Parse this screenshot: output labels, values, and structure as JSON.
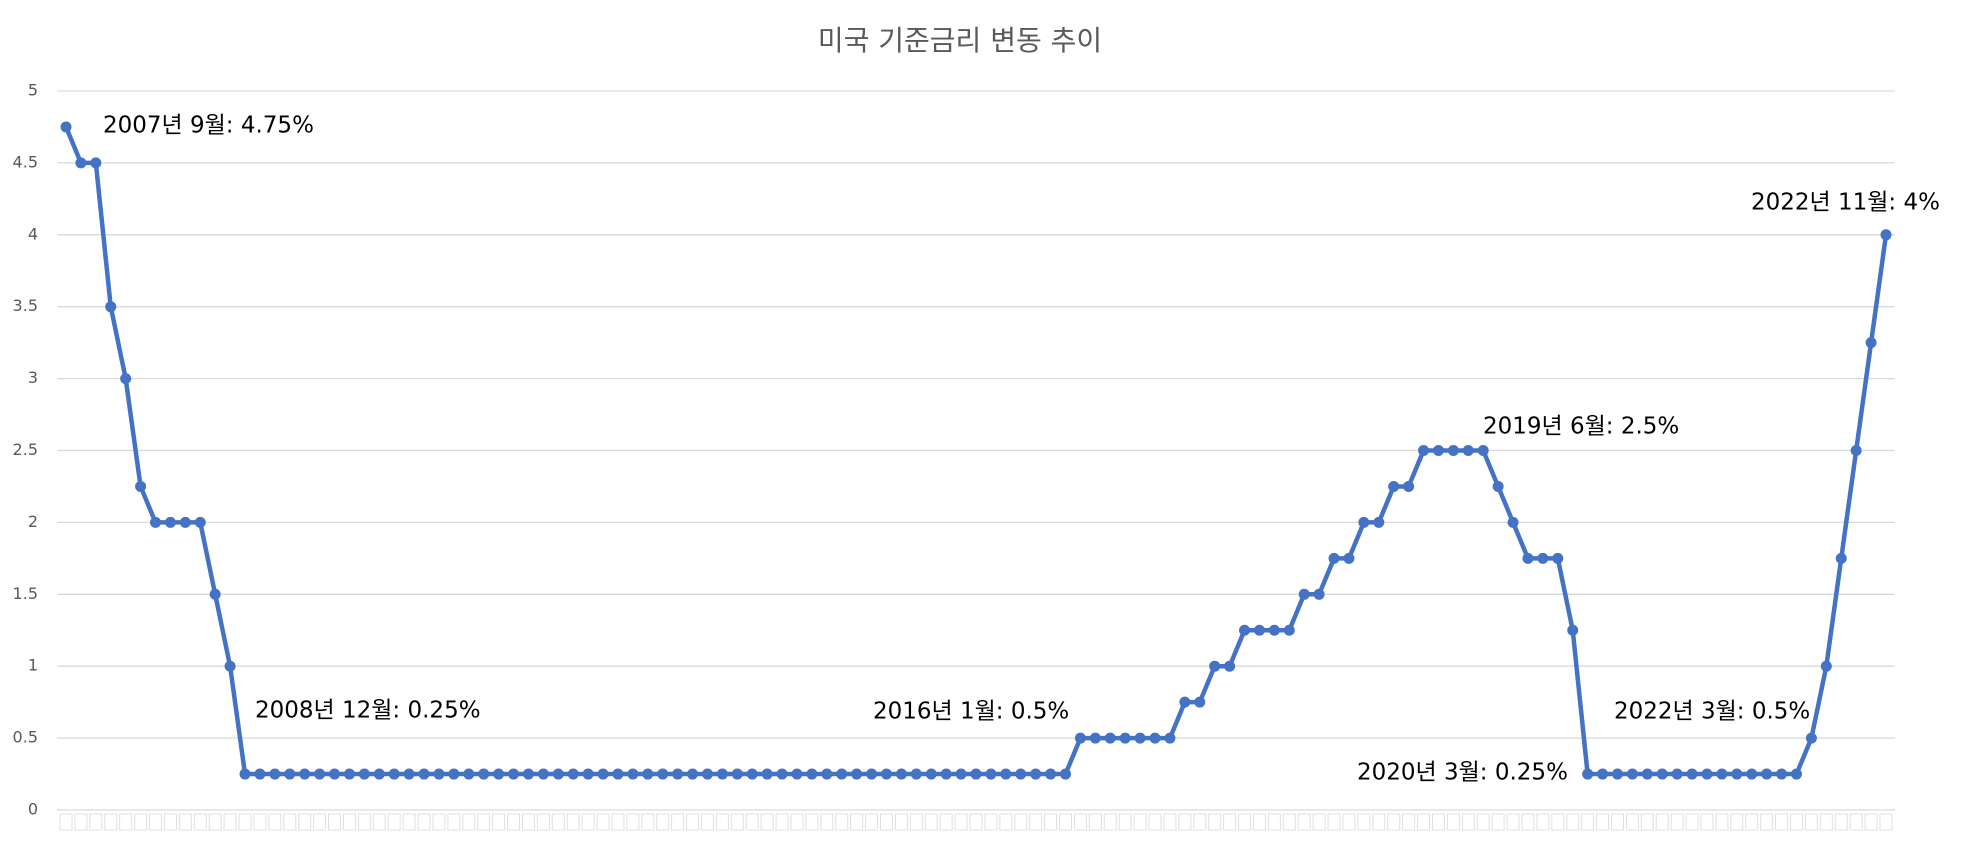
{
  "chart_data": {
    "type": "line",
    "title": "미국 기준금리 변동 추이",
    "series": [
      {
        "name": "기준금리",
        "color": "#4472c4",
        "values": [
          4.75,
          4.5,
          4.5,
          3.5,
          3,
          2.25,
          2,
          2,
          2,
          2,
          1.5,
          1,
          0.25,
          0.25,
          0.25,
          0.25,
          0.25,
          0.25,
          0.25,
          0.25,
          0.25,
          0.25,
          0.25,
          0.25,
          0.25,
          0.25,
          0.25,
          0.25,
          0.25,
          0.25,
          0.25,
          0.25,
          0.25,
          0.25,
          0.25,
          0.25,
          0.25,
          0.25,
          0.25,
          0.25,
          0.25,
          0.25,
          0.25,
          0.25,
          0.25,
          0.25,
          0.25,
          0.25,
          0.25,
          0.25,
          0.25,
          0.25,
          0.25,
          0.25,
          0.25,
          0.25,
          0.25,
          0.25,
          0.25,
          0.25,
          0.25,
          0.25,
          0.25,
          0.25,
          0.25,
          0.25,
          0.25,
          0.25,
          0.5,
          0.5,
          0.5,
          0.5,
          0.5,
          0.5,
          0.5,
          0.75,
          0.75,
          1,
          1,
          1.25,
          1.25,
          1.25,
          1.25,
          1.5,
          1.5,
          1.75,
          1.75,
          2,
          2,
          2.25,
          2.25,
          2.5,
          2.5,
          2.5,
          2.5,
          2.5,
          2.25,
          2,
          1.75,
          1.75,
          1.75,
          1.25,
          0.25,
          0.25,
          0.25,
          0.25,
          0.25,
          0.25,
          0.25,
          0.25,
          0.25,
          0.25,
          0.25,
          0.25,
          0.25,
          0.25,
          0.25,
          0.5,
          1,
          1.75,
          2.5,
          3.25,
          4
        ]
      }
    ],
    "ylim": [
      0,
      5
    ],
    "yticks": [
      0,
      {
        "value": 0.5,
        "label": "0.5"
      },
      1,
      {
        "value": 1.5,
        "label": "1.5"
      },
      2,
      {
        "value": 2.5,
        "label": "2.5"
      },
      3,
      {
        "value": 3.5,
        "label": "3.5"
      },
      4,
      {
        "value": 4.5,
        "label": "4.5"
      },
      5
    ],
    "grid": true,
    "annotations": [
      "2007년 9월: 4.75%",
      "2008년 12월: 0.25%",
      "2016년 1월: 0.5%",
      "2019년 6월: 2.5%",
      "2020년 3월: 0.25%",
      "2022년 3월: 0.5%",
      "2022년 11월: 4%"
    ]
  }
}
